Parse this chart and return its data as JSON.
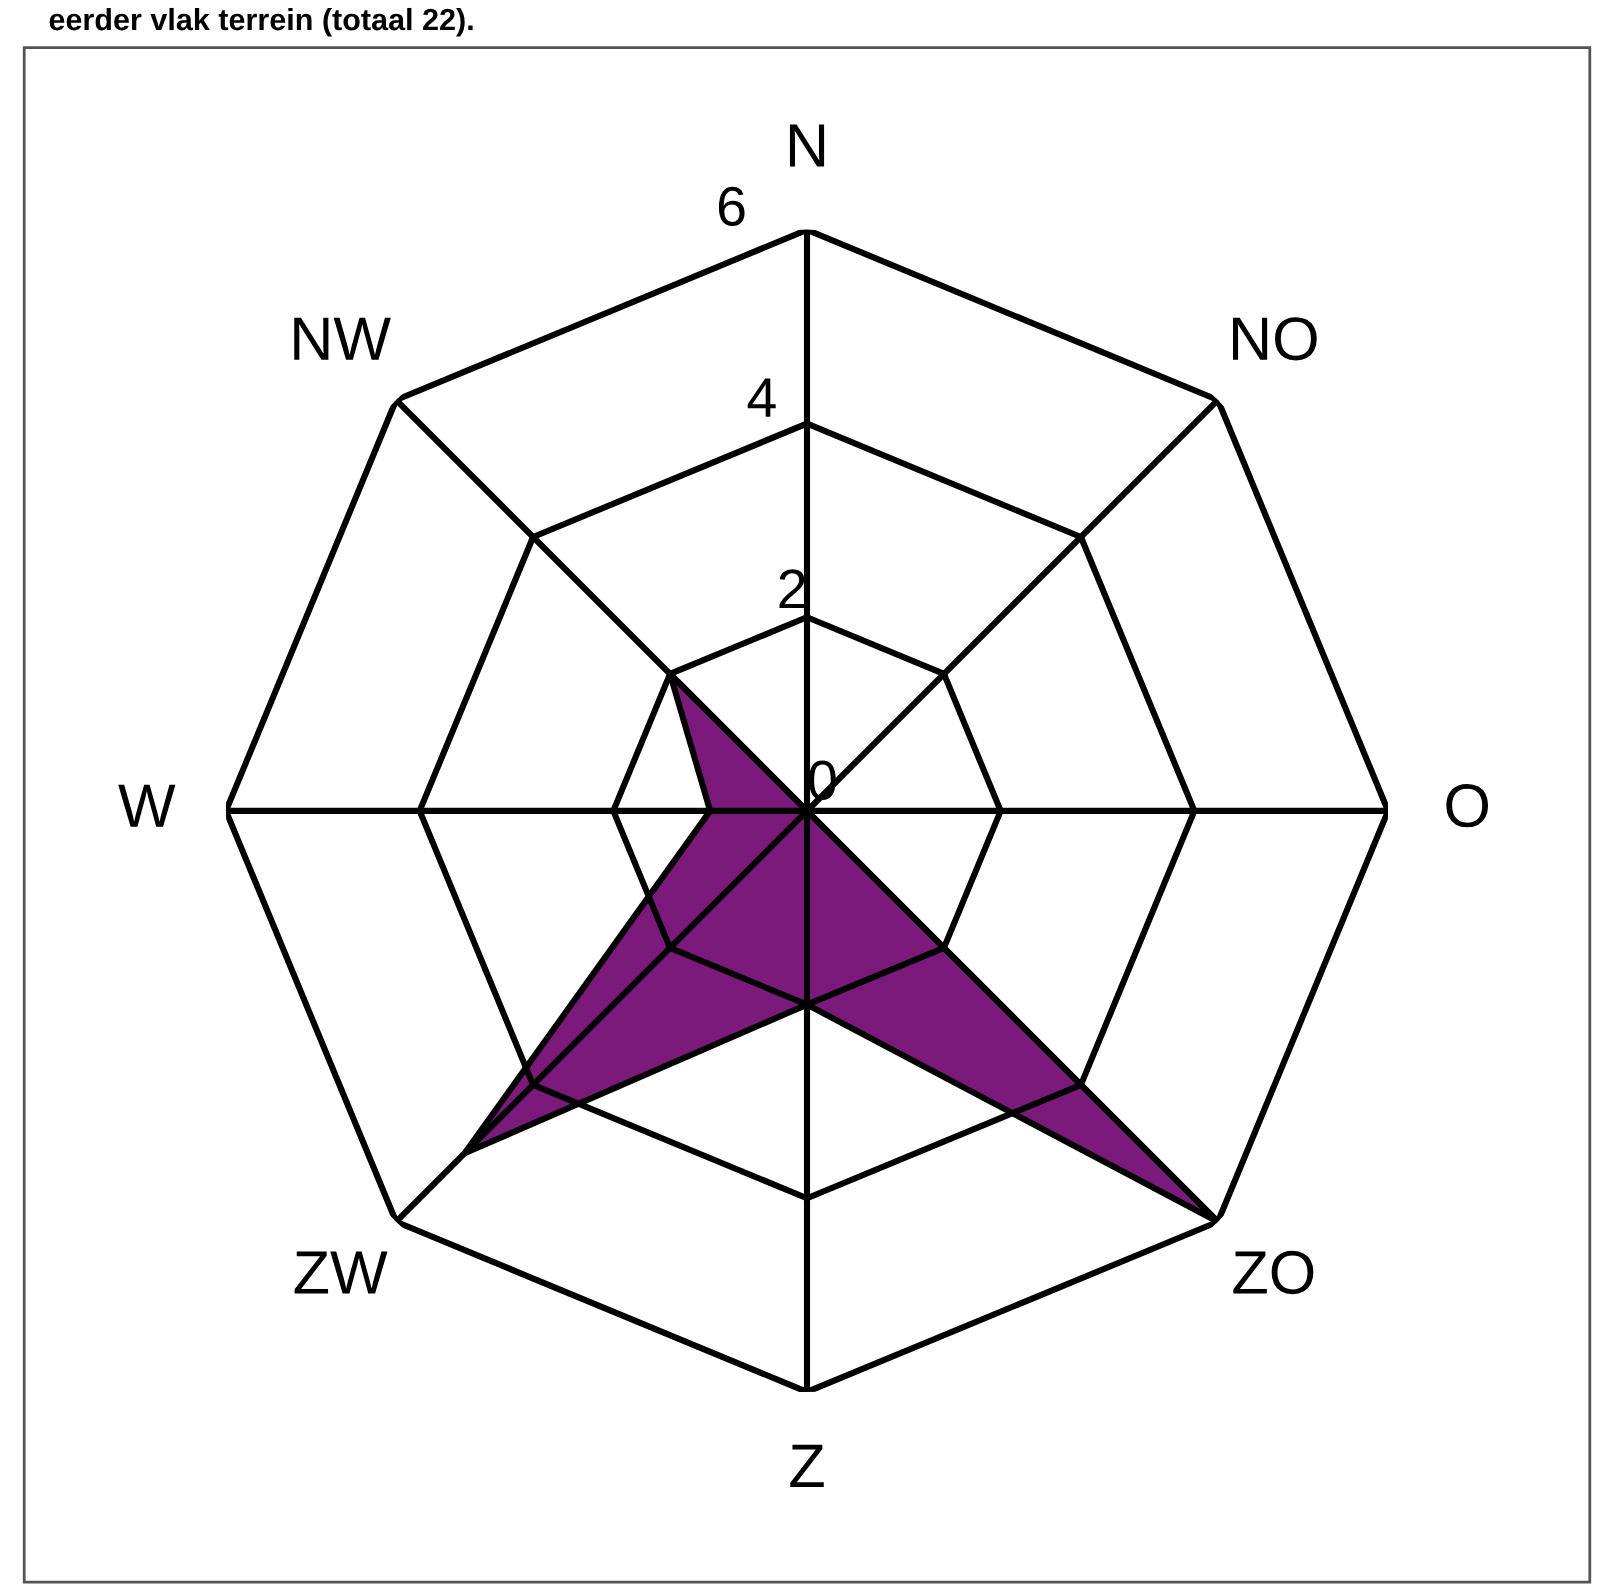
{
  "chart_data": {
    "type": "radar",
    "title": "eerder vlak terrein (totaal 22).",
    "categories": [
      "N",
      "NO",
      "O",
      "ZO",
      "Z",
      "ZW",
      "W",
      "NW"
    ],
    "series": [
      {
        "color": "#7b1a7b",
        "values": [
          0,
          0,
          0,
          6,
          2,
          5,
          1,
          2
        ]
      }
    ],
    "ylim": [
      0,
      6
    ],
    "yticks": [
      0,
      2,
      4,
      6
    ],
    "grid": true
  }
}
